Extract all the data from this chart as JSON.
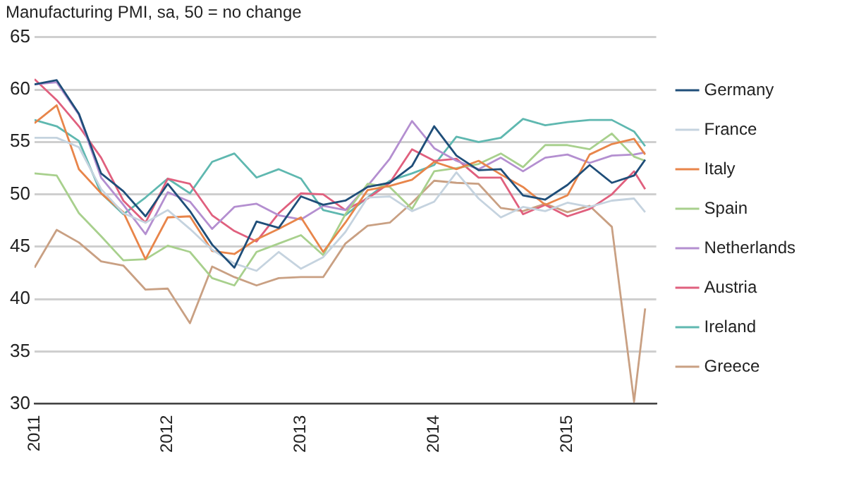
{
  "chart_data": {
    "type": "line",
    "title": "Manufacturing PMI, sa, 50 = no change",
    "x": [
      "2011-01",
      "2011-03",
      "2011-05",
      "2011-07",
      "2011-09",
      "2011-11",
      "2012-01",
      "2012-03",
      "2012-05",
      "2012-07",
      "2012-09",
      "2012-11",
      "2013-01",
      "2013-03",
      "2013-05",
      "2013-07",
      "2013-09",
      "2013-11",
      "2014-01",
      "2014-03",
      "2014-05",
      "2014-07",
      "2014-09",
      "2014-11",
      "2015-01",
      "2015-03",
      "2015-05",
      "2015-07",
      "2015-08"
    ],
    "series": [
      {
        "name": "Germany",
        "color": "#1f4e79",
        "values": [
          60.5,
          60.9,
          57.7,
          52.0,
          50.3,
          47.9,
          51.0,
          48.4,
          45.2,
          43.0,
          47.4,
          46.8,
          49.8,
          49.0,
          49.4,
          50.7,
          51.1,
          52.7,
          56.5,
          53.7,
          52.3,
          52.4,
          49.9,
          49.5,
          50.9,
          52.8,
          51.1,
          51.8,
          53.3
        ]
      },
      {
        "name": "France",
        "color": "#c5d3df",
        "values": [
          55.4,
          55.4,
          54.5,
          50.5,
          48.2,
          47.3,
          48.5,
          46.7,
          44.7,
          43.4,
          42.7,
          44.5,
          42.9,
          44.0,
          46.4,
          49.7,
          49.8,
          48.4,
          49.3,
          52.1,
          49.6,
          47.8,
          48.8,
          48.4,
          49.2,
          48.8,
          49.4,
          49.6,
          48.3
        ]
      },
      {
        "name": "Italy",
        "color": "#e8854a",
        "values": [
          56.8,
          58.5,
          52.4,
          50.1,
          48.3,
          43.8,
          47.8,
          47.9,
          44.6,
          44.3,
          45.7,
          46.7,
          47.8,
          44.5,
          47.3,
          50.4,
          50.8,
          51.4,
          53.1,
          52.4,
          53.2,
          51.9,
          50.7,
          49.0,
          49.9,
          53.8,
          54.8,
          55.3,
          53.8
        ]
      },
      {
        "name": "Spain",
        "color": "#a8d08d",
        "values": [
          52.0,
          51.8,
          48.2,
          46.0,
          43.7,
          43.8,
          45.1,
          44.5,
          42.0,
          41.3,
          44.5,
          45.3,
          46.1,
          44.2,
          48.1,
          51.0,
          50.7,
          48.6,
          52.2,
          52.5,
          52.9,
          53.9,
          52.6,
          54.7,
          54.7,
          54.3,
          55.8,
          53.6,
          53.2
        ]
      },
      {
        "name": "Netherlands",
        "color": "#b48fd0",
        "values": [
          60.5,
          60.7,
          57.6,
          51.6,
          49.0,
          46.2,
          50.2,
          49.3,
          46.7,
          48.8,
          49.1,
          48.0,
          47.6,
          48.9,
          48.5,
          50.8,
          53.4,
          57.0,
          54.4,
          53.2,
          52.4,
          53.5,
          52.2,
          53.5,
          53.8,
          53.0,
          53.7,
          53.8,
          54.0
        ]
      },
      {
        "name": "Austria",
        "color": "#e0607e",
        "values": [
          61.0,
          59.0,
          56.5,
          53.5,
          49.4,
          47.3,
          51.5,
          51.0,
          48.0,
          46.5,
          45.5,
          48.2,
          50.1,
          50.0,
          48.5,
          49.6,
          51.1,
          54.3,
          53.2,
          53.4,
          51.6,
          51.6,
          48.1,
          49.0,
          47.9,
          48.6,
          50.0,
          52.2,
          50.5
        ]
      },
      {
        "name": "Ireland",
        "color": "#5fb8b0",
        "values": [
          57.1,
          56.5,
          55.1,
          50.1,
          48.1,
          49.7,
          51.5,
          50.1,
          53.1,
          53.9,
          51.6,
          52.4,
          51.5,
          48.5,
          48.0,
          49.7,
          51.3,
          52.0,
          52.8,
          55.5,
          55.0,
          55.4,
          57.2,
          56.6,
          56.9,
          57.1,
          57.1,
          56.0,
          54.6
        ]
      },
      {
        "name": "Greece",
        "color": "#c9a083",
        "values": [
          43.0,
          46.6,
          45.4,
          43.6,
          43.2,
          40.9,
          41.0,
          37.7,
          43.1,
          42.1,
          41.3,
          42.0,
          42.1,
          42.1,
          45.3,
          47.0,
          47.3,
          49.2,
          51.3,
          51.1,
          51.0,
          48.7,
          48.4,
          49.1,
          48.3,
          48.9,
          46.9,
          30.2,
          39.1
        ]
      }
    ],
    "xlim": [
      "2011-01",
      "2015-09"
    ],
    "xticks": [
      {
        "value": "2011-01",
        "label": "2011"
      },
      {
        "value": "2012-01",
        "label": "2012"
      },
      {
        "value": "2013-01",
        "label": "2013"
      },
      {
        "value": "2014-01",
        "label": "2014"
      },
      {
        "value": "2015-01",
        "label": "2015"
      }
    ],
    "ylim": [
      30,
      65
    ],
    "yticks": [
      30,
      35,
      40,
      45,
      50,
      55,
      60,
      65
    ],
    "grid": "y",
    "legend": "right",
    "marker": "none",
    "line_style": "solid"
  }
}
